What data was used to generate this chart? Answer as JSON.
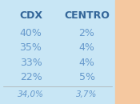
{
  "col1_header": "CDX",
  "col2_header": "CENTRO",
  "col1_values": [
    "40%",
    "35%",
    "33%",
    "22%"
  ],
  "col2_values": [
    "2%",
    "4%",
    "4%",
    "5%"
  ],
  "col1_summary": "34,0%",
  "col2_summary": "3,7%",
  "bg_left": "#c8e6f5",
  "bg_right": "#f5c8a0",
  "text_color": "#6699cc",
  "header_color": "#336699",
  "summary_color": "#6699cc",
  "line_color": "#aaaaaa",
  "figsize": [
    1.75,
    1.3
  ],
  "dpi": 100
}
